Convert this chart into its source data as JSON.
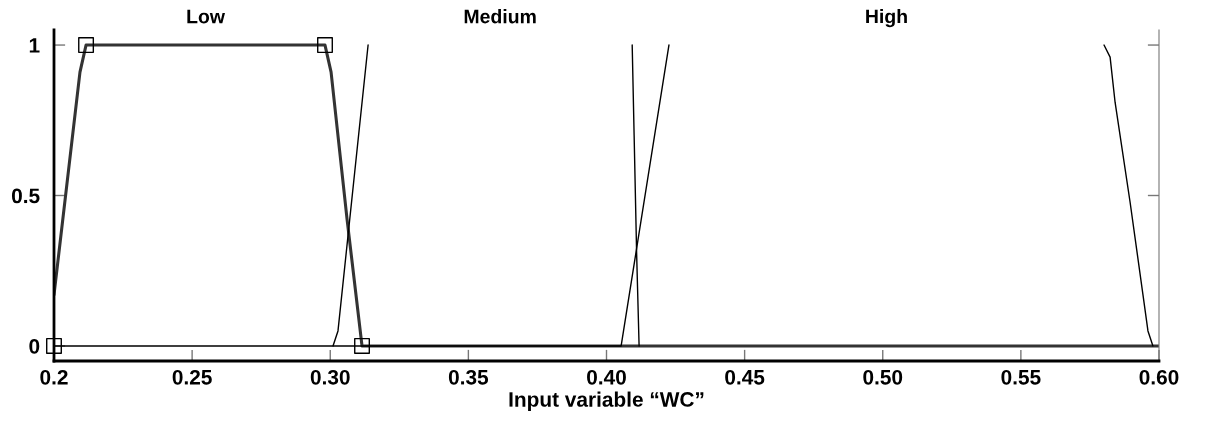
{
  "chart_data": {
    "type": "line",
    "xlabel": "Input variable “WC”",
    "annotations": [
      "Low",
      "Medium",
      "High"
    ],
    "xlim": [
      0.2,
      0.6
    ],
    "xticks": [
      {
        "value": 0.2,
        "label": "0.2"
      },
      0.25,
      {
        "value": 0.3,
        "label": "0.30"
      },
      0.35,
      {
        "value": 0.4,
        "label": "0.40"
      },
      0.45,
      {
        "value": 0.5,
        "label": "0.50"
      },
      0.55,
      {
        "value": 0.6,
        "label": "0.60"
      }
    ],
    "ylim": [
      -0.05,
      1.05
    ],
    "yticks": [
      0,
      0.5,
      1
    ],
    "grid": false,
    "legend": false,
    "marker": "none",
    "line_style": "solid",
    "series": [
      {
        "color": "#333333",
        "x": [
          0.2,
          0.2094,
          0.2116,
          0.2981,
          0.3003,
          0.3061,
          0.3115,
          0.6
        ],
        "values": [
          0.17,
          0.91,
          1,
          1,
          0.91,
          0.42,
          0,
          0
        ]
      },
      {
        "color": "#000000",
        "x": [
          0.301,
          0.3028,
          0.3137
        ],
        "values": [
          0,
          0.05,
          1
        ]
      },
      {
        "color": "#000000",
        "x": [
          0.4093,
          0.41,
          0.4109,
          0.4118
        ],
        "values": [
          1,
          0.7,
          0.31,
          0
        ]
      },
      {
        "color": "#000000",
        "x": [
          0.2,
          0.4053,
          0.4226
        ],
        "values": [
          0,
          0,
          1
        ]
      },
      {
        "color": "#000000",
        "x": [
          0.5801,
          0.5823,
          0.5841,
          0.5895,
          0.5942,
          0.596,
          0.5978
        ],
        "values": [
          1,
          0.96,
          0.81,
          0.48,
          0.17,
          0.05,
          0
        ]
      },
      {
        "type": "scatter",
        "marker": "square",
        "color": "#000000",
        "x": [
          0.2,
          0.2116,
          0.2981,
          0.3115
        ],
        "values": [
          0,
          1,
          1,
          0
        ]
      }
    ]
  }
}
